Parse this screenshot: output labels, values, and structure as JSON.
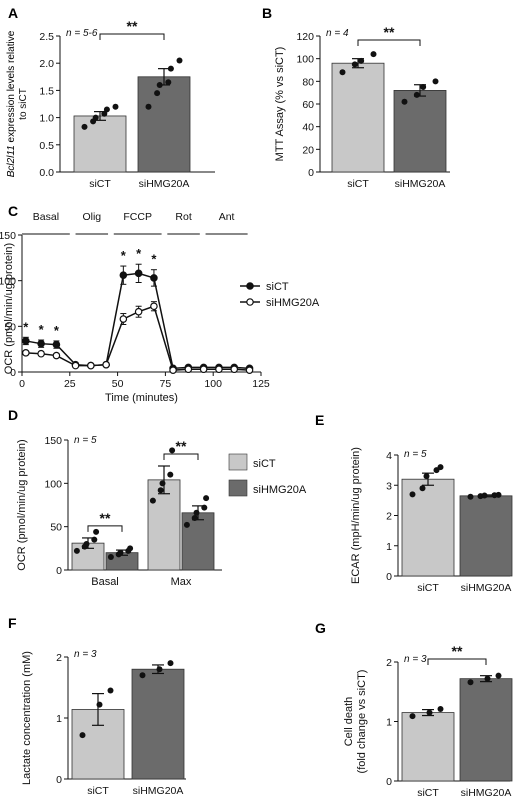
{
  "colors": {
    "siCT": "#c8c8c8",
    "siHMG20A": "#6b6b6b",
    "axis": "#111111"
  },
  "chart_data": [
    {
      "panel": "A",
      "type": "bar",
      "n_label": "n = 5-6",
      "ylabel_italic": "Bcl2l11",
      "ylabel_rest": " expression levels relative",
      "ylabel_line2": "to siCT",
      "ylim": [
        0,
        2.5
      ],
      "yticks": [
        0.0,
        0.5,
        1.0,
        1.5,
        2.0,
        2.5
      ],
      "ytick_labels": [
        "0.0",
        "0.5",
        "1.0",
        "1.5",
        "2.0",
        "2.5"
      ],
      "categories": [
        "siCT",
        "siHMG20A"
      ],
      "values": [
        1.03,
        1.75
      ],
      "errors": [
        0.08,
        0.15
      ],
      "points": [
        [
          0.83,
          0.93,
          1.0,
          1.07,
          1.15,
          1.2
        ],
        [
          1.2,
          1.45,
          1.6,
          1.65,
          1.9,
          2.05
        ]
      ],
      "significance": "**"
    },
    {
      "panel": "B",
      "type": "bar",
      "n_label": "n = 4",
      "ylabel": "MTT Assay (% vs siCT)",
      "ylim": [
        0,
        120
      ],
      "yticks": [
        0,
        20,
        40,
        60,
        80,
        100,
        120
      ],
      "ytick_labels": [
        "0",
        "20",
        "40",
        "60",
        "80",
        "100",
        "120"
      ],
      "categories": [
        "siCT",
        "siHMG20A"
      ],
      "values": [
        96,
        72
      ],
      "errors": [
        4,
        5
      ],
      "points": [
        [
          88,
          95,
          98,
          104
        ],
        [
          62,
          68,
          75,
          80
        ]
      ],
      "significance": "**"
    },
    {
      "panel": "C",
      "type": "line",
      "xlabel": "Time (minutes)",
      "ylabel": "OCR (pmol/min/ug protein)",
      "xlim": [
        0,
        125
      ],
      "ylim": [
        0,
        150
      ],
      "xticks": [
        0,
        25,
        50,
        75,
        100,
        125
      ],
      "xtick_labels": [
        "0",
        "25",
        "50",
        "75",
        "100",
        "125"
      ],
      "yticks": [
        0,
        50,
        100,
        150
      ],
      "ytick_labels": [
        "0",
        "50",
        "100",
        "150"
      ],
      "phases": [
        {
          "label": "Basal",
          "start": 0,
          "end": 25
        },
        {
          "label": "Olig",
          "start": 28,
          "end": 45
        },
        {
          "label": "FCCP",
          "start": 48,
          "end": 73
        },
        {
          "label": "Rot",
          "start": 76,
          "end": 93
        },
        {
          "label": "Ant",
          "start": 96,
          "end": 118
        }
      ],
      "x": [
        2,
        10,
        18,
        28,
        36,
        44,
        53,
        61,
        69,
        79,
        87,
        95,
        103,
        111,
        119
      ],
      "series": [
        {
          "name": "siCT",
          "marker": "filled",
          "values": [
            34,
            31,
            30,
            8,
            7,
            8,
            106,
            108,
            103,
            4,
            5,
            5,
            5,
            5,
            4
          ],
          "errors": [
            4,
            4,
            4,
            1,
            1,
            1,
            10,
            10,
            9,
            1,
            1,
            1,
            1,
            1,
            1
          ]
        },
        {
          "name": "siHMG20A",
          "marker": "open",
          "values": [
            21,
            20,
            18,
            7,
            7,
            8,
            58,
            66,
            72,
            2,
            3,
            3,
            3,
            3,
            2
          ],
          "errors": [
            2,
            2,
            2,
            1,
            1,
            1,
            6,
            6,
            5,
            1,
            1,
            1,
            1,
            1,
            1
          ]
        }
      ],
      "star_x": [
        2,
        10,
        18,
        53,
        61,
        69
      ],
      "star_label": "*"
    },
    {
      "panel": "D",
      "type": "bar",
      "n_label": "n = 5",
      "ylabel": "OCR (pmol/min/ug protein)",
      "ylim": [
        0,
        150
      ],
      "yticks": [
        0,
        50,
        100,
        150
      ],
      "ytick_labels": [
        "0",
        "50",
        "100",
        "150"
      ],
      "categories": [
        "Basal",
        "Max"
      ],
      "series": [
        {
          "name": "siCT",
          "values": [
            31,
            104
          ],
          "errors": [
            6,
            16
          ],
          "points": [
            [
              22,
              27,
              30,
              35,
              44
            ],
            [
              80,
              92,
              100,
              110,
              138
            ]
          ]
        },
        {
          "name": "siHMG20A",
          "values": [
            20,
            66
          ],
          "errors": [
            3,
            8
          ],
          "points": [
            [
              15,
              18,
              20,
              22,
              25
            ],
            [
              52,
              60,
              66,
              72,
              83
            ]
          ]
        }
      ],
      "significance": [
        "**",
        "**"
      ]
    },
    {
      "panel": "E",
      "type": "bar",
      "n_label": "n = 5",
      "ylabel": "ECAR (mpH/min/ug protein)",
      "ylim": [
        0,
        4
      ],
      "yticks": [
        0,
        1,
        2,
        3,
        4
      ],
      "ytick_labels": [
        "0",
        "1",
        "2",
        "3",
        "4"
      ],
      "categories": [
        "siCT",
        "siHMG20A"
      ],
      "values": [
        3.2,
        2.65
      ],
      "errors": [
        0.2,
        0.03
      ],
      "points": [
        [
          2.7,
          2.9,
          3.3,
          3.5,
          3.6
        ],
        [
          2.62,
          2.64,
          2.66,
          2.67,
          2.68
        ]
      ]
    },
    {
      "panel": "F",
      "type": "bar",
      "n_label": "n = 3",
      "ylabel": "Lactate concentration (mM)",
      "ylim": [
        0,
        2
      ],
      "yticks": [
        0,
        1,
        2
      ],
      "ytick_labels": [
        "0",
        "1",
        "2"
      ],
      "categories": [
        "siCT",
        "siHMG20A"
      ],
      "values": [
        1.14,
        1.8
      ],
      "errors": [
        0.26,
        0.07
      ],
      "points": [
        [
          0.72,
          1.22,
          1.45
        ],
        [
          1.7,
          1.8,
          1.9
        ]
      ]
    },
    {
      "panel": "G",
      "type": "bar",
      "n_label": "n = 3",
      "ylabel": "Cell death",
      "ylabel_line2": "(fold change vs siCT)",
      "ylim": [
        0,
        2
      ],
      "yticks": [
        0,
        1,
        2
      ],
      "ytick_labels": [
        "0",
        "1",
        "2"
      ],
      "categories": [
        "siCT",
        "siHMG20A"
      ],
      "values": [
        1.15,
        1.72
      ],
      "errors": [
        0.05,
        0.05
      ],
      "points": [
        [
          1.09,
          1.15,
          1.21
        ],
        [
          1.66,
          1.72,
          1.77
        ]
      ],
      "significance": "**"
    }
  ]
}
